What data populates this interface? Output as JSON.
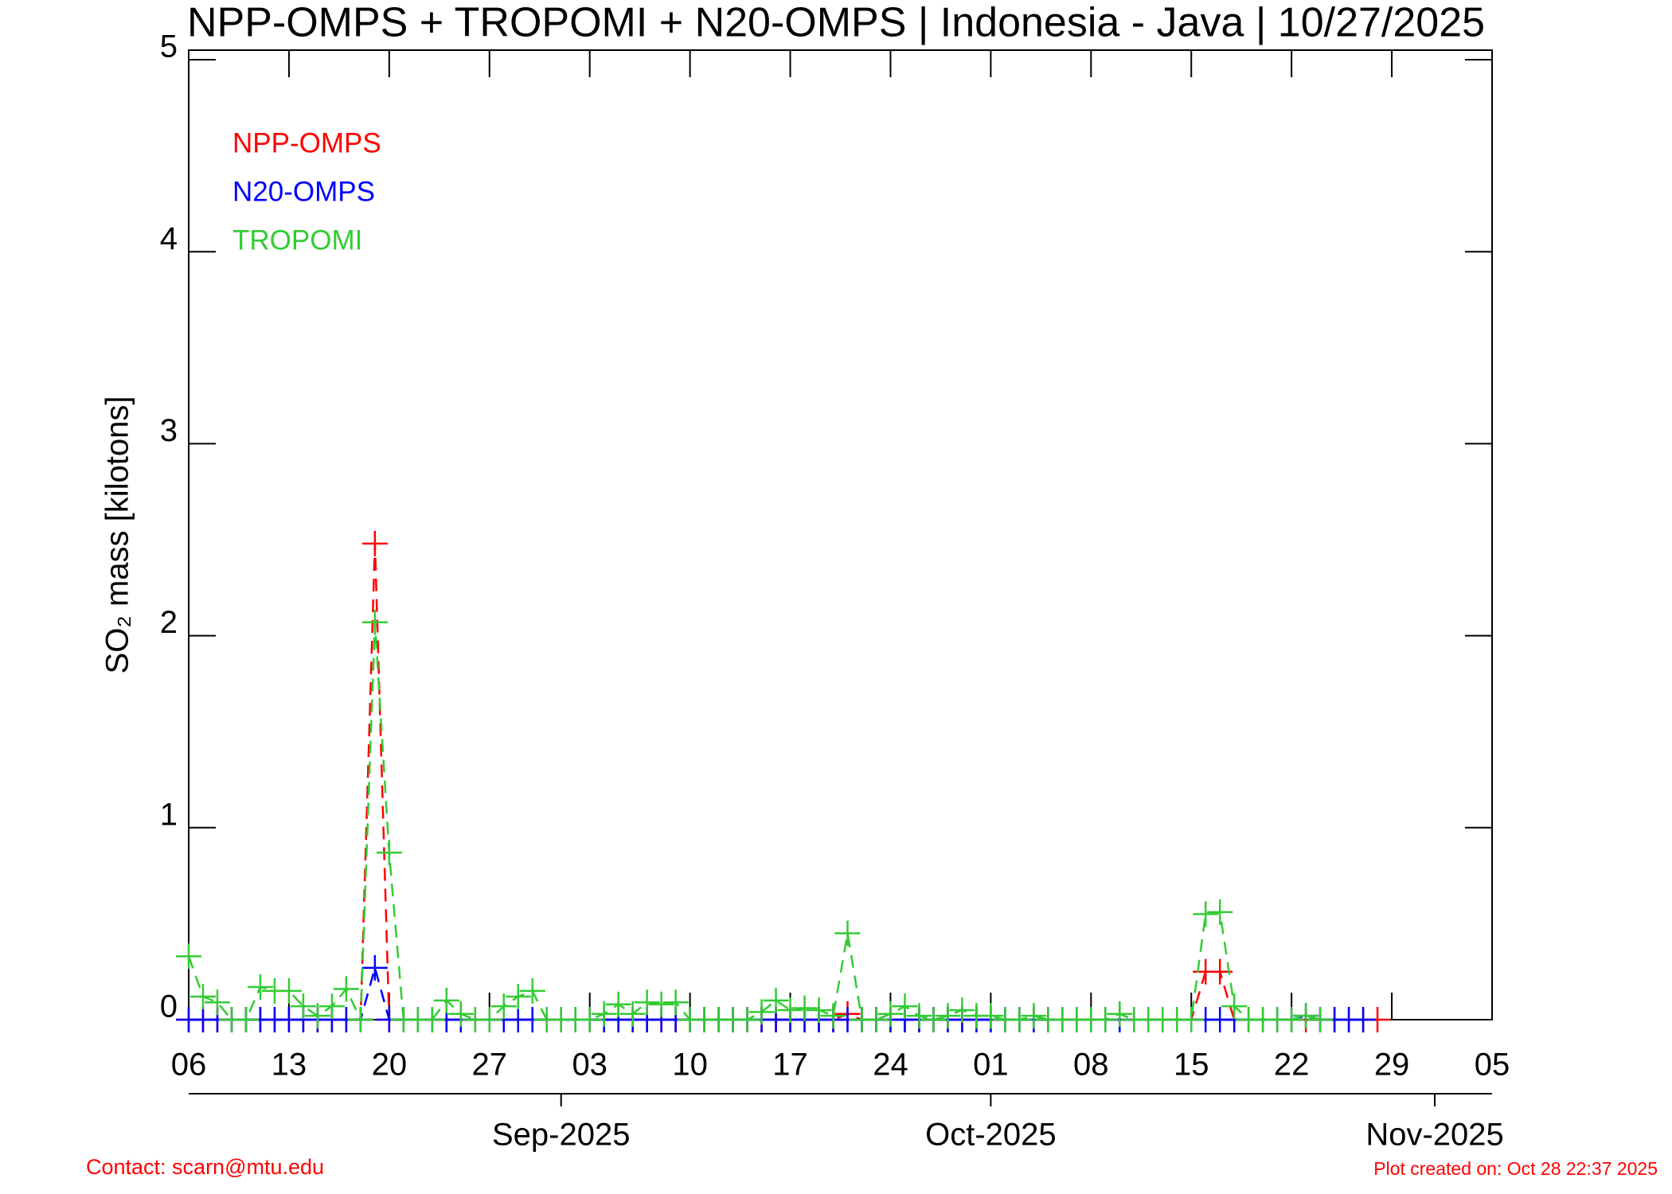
{
  "chart_data": {
    "type": "line",
    "title": "NPP-OMPS + TROPOMI + N20-OMPS | Indonesia - Java | 10/27/2025",
    "y_label": "SO₂ mass [kilotons]",
    "x": [
      "2025-08-06",
      "2025-08-07",
      "2025-08-08",
      "2025-08-09",
      "2025-08-10",
      "2025-08-11",
      "2025-08-12",
      "2025-08-13",
      "2025-08-14",
      "2025-08-15",
      "2025-08-16",
      "2025-08-17",
      "2025-08-18",
      "2025-08-19",
      "2025-08-20",
      "2025-08-21",
      "2025-08-22",
      "2025-08-23",
      "2025-08-24",
      "2025-08-25",
      "2025-08-26",
      "2025-08-27",
      "2025-08-28",
      "2025-08-29",
      "2025-08-30",
      "2025-08-31",
      "2025-09-01",
      "2025-09-02",
      "2025-09-03",
      "2025-09-04",
      "2025-09-05",
      "2025-09-06",
      "2025-09-07",
      "2025-09-08",
      "2025-09-09",
      "2025-09-10",
      "2025-09-11",
      "2025-09-12",
      "2025-09-13",
      "2025-09-14",
      "2025-09-15",
      "2025-09-16",
      "2025-09-17",
      "2025-09-18",
      "2025-09-19",
      "2025-09-20",
      "2025-09-21",
      "2025-09-22",
      "2025-09-23",
      "2025-09-24",
      "2025-09-25",
      "2025-09-26",
      "2025-09-27",
      "2025-09-28",
      "2025-09-29",
      "2025-09-30",
      "2025-10-01",
      "2025-10-02",
      "2025-10-03",
      "2025-10-04",
      "2025-10-05",
      "2025-10-06",
      "2025-10-07",
      "2025-10-08",
      "2025-10-09",
      "2025-10-10",
      "2025-10-11",
      "2025-10-12",
      "2025-10-13",
      "2025-10-14",
      "2025-10-15",
      "2025-10-16",
      "2025-10-17",
      "2025-10-18",
      "2025-10-19",
      "2025-10-20",
      "2025-10-21",
      "2025-10-22",
      "2025-10-23",
      "2025-10-24",
      "2025-10-25",
      "2025-10-26",
      "2025-10-27",
      "2025-10-28"
    ],
    "series": [
      {
        "name": "NPP-OMPS",
        "color": "#ff0000",
        "values": [
          0,
          0,
          0,
          0,
          0,
          0,
          0,
          0,
          0,
          0,
          0,
          0,
          0,
          2.48,
          0,
          0,
          0,
          0,
          0,
          0,
          0,
          0,
          0,
          0,
          0,
          0,
          0,
          0,
          0,
          0,
          0,
          0,
          0,
          0,
          0,
          0,
          0,
          0,
          0,
          0,
          0,
          0,
          0,
          0,
          0,
          0,
          0.03,
          0,
          0,
          0,
          0,
          0,
          0,
          0,
          0,
          0,
          0,
          0,
          0,
          0,
          0,
          0,
          0,
          0,
          0,
          0,
          0,
          0,
          0,
          0,
          0,
          0.25,
          0.25,
          0,
          0,
          0,
          0,
          0,
          0,
          0,
          0,
          0,
          0,
          0
        ]
      },
      {
        "name": "N20-OMPS",
        "color": "#0000ff",
        "values": [
          0,
          0,
          0,
          0,
          0,
          0,
          0,
          0,
          0,
          0,
          0,
          0,
          0,
          0.27,
          0,
          0,
          0,
          0,
          0,
          0,
          0,
          0,
          0,
          0,
          0,
          0,
          0,
          0,
          0,
          0,
          0,
          0,
          0,
          0,
          0,
          0,
          0,
          0,
          0,
          0,
          0,
          0,
          0,
          0,
          0,
          0,
          0,
          0,
          0,
          0,
          0,
          0,
          0,
          0,
          0,
          0,
          0,
          0,
          0,
          0,
          0,
          0,
          0,
          0,
          0,
          0,
          0,
          0,
          0,
          0,
          0,
          0,
          0,
          0,
          0,
          0,
          0,
          0,
          0.02,
          0,
          0,
          0,
          0,
          null
        ]
      },
      {
        "name": "TROPOMI",
        "color": "#33cc33",
        "values": [
          0.33,
          0.12,
          0.09,
          0,
          0,
          0.17,
          0.15,
          0.15,
          0.07,
          0.02,
          0.07,
          0.16,
          0,
          2.07,
          0.87,
          0,
          0,
          0,
          0.1,
          0.03,
          0,
          0,
          0.07,
          0.12,
          0.15,
          0,
          0,
          0,
          0,
          0.03,
          0.08,
          0.03,
          0.09,
          0.08,
          0.09,
          0,
          0,
          0,
          0,
          0,
          0.04,
          0.1,
          0.05,
          0.06,
          0.05,
          0.02,
          0.45,
          0,
          0,
          0.03,
          0.07,
          0.02,
          0,
          0.02,
          0.05,
          0.02,
          0.02,
          0,
          0,
          0.02,
          0,
          0,
          0,
          0,
          0,
          0.03,
          0,
          0,
          0,
          0,
          0,
          0.55,
          0.56,
          0.07,
          0,
          0,
          0,
          0,
          0.02,
          0,
          null,
          null,
          null,
          null
        ]
      }
    ],
    "xlim": [
      "2025-08-06",
      "2025-11-05"
    ],
    "xticks": [
      {
        "value": "2025-08-06",
        "label": "06"
      },
      {
        "value": "2025-08-13",
        "label": "13"
      },
      {
        "value": "2025-08-20",
        "label": "20"
      },
      {
        "value": "2025-08-27",
        "label": "27"
      },
      {
        "value": "2025-09-03",
        "label": "03"
      },
      {
        "value": "2025-09-10",
        "label": "10"
      },
      {
        "value": "2025-09-17",
        "label": "17"
      },
      {
        "value": "2025-09-24",
        "label": "24"
      },
      {
        "value": "2025-10-01",
        "label": "01"
      },
      {
        "value": "2025-10-08",
        "label": "08"
      },
      {
        "value": "2025-10-15",
        "label": "15"
      },
      {
        "value": "2025-10-22",
        "label": "22"
      },
      {
        "value": "2025-10-29",
        "label": "29"
      },
      {
        "value": "2025-11-05",
        "label": "05"
      }
    ],
    "month_ticks": [
      {
        "value": "2025-09-01",
        "label": "Sep-2025"
      },
      {
        "value": "2025-10-01",
        "label": "Oct-2025"
      },
      {
        "value": "2025-11-01",
        "label": "Nov-2025"
      }
    ],
    "ylim": [
      0,
      5.05
    ],
    "yticks": [
      0,
      1,
      2,
      3,
      4,
      5
    ],
    "grid": false,
    "legend": "upper left",
    "footer_left": "Contact: scarn@mtu.edu",
    "footer_right": "Plot created on: Oct 28 22:37 2025"
  }
}
